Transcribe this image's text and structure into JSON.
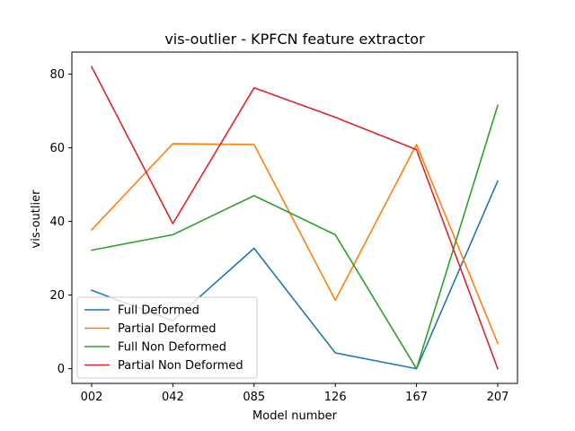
{
  "chart_data": {
    "type": "line",
    "title": "vis-outlier - KPFCN feature extractor",
    "xlabel": "Model number",
    "ylabel": "vis-outlier",
    "categories": [
      "002",
      "042",
      "085",
      "126",
      "167",
      "207"
    ],
    "ylim": [
      -4,
      86
    ],
    "yticks": [
      0,
      20,
      40,
      60,
      80
    ],
    "grid": false,
    "legend_position": "lower-left",
    "series": [
      {
        "name": "Full Deformed",
        "color": "#1f77b4",
        "values": [
          21.3,
          13.0,
          32.7,
          4.3,
          0.0,
          51.0
        ]
      },
      {
        "name": "Partial Deformed",
        "color": "#ff7f0e",
        "values": [
          37.7,
          61.1,
          60.9,
          18.6,
          60.9,
          6.9
        ]
      },
      {
        "name": "Full Non Deformed",
        "color": "#2ca02c",
        "values": [
          32.2,
          36.4,
          47.0,
          36.4,
          0.0,
          71.5
        ]
      },
      {
        "name": "Partial Non Deformed",
        "color": "#d62728",
        "values": [
          82.0,
          39.4,
          76.3,
          68.3,
          59.5,
          0.0
        ]
      }
    ]
  }
}
